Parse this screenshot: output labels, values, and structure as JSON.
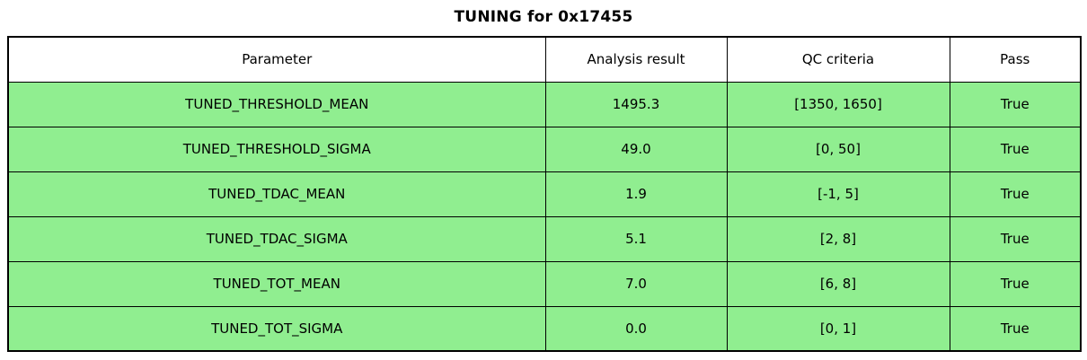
{
  "title": "TUNING for 0x17455",
  "colors": {
    "row_bg": "#90ee90",
    "header_bg": "#ffffff",
    "border": "#000000",
    "text": "#000000"
  },
  "chart_data": {
    "type": "table",
    "title": "TUNING for 0x17455",
    "columns": [
      "Parameter",
      "Analysis result",
      "QC criteria",
      "Pass"
    ],
    "rows": [
      [
        "TUNED_THRESHOLD_MEAN",
        "1495.3",
        "[1350, 1650]",
        "True"
      ],
      [
        "TUNED_THRESHOLD_SIGMA",
        "49.0",
        "[0, 50]",
        "True"
      ],
      [
        "TUNED_TDAC_MEAN",
        "1.9",
        "[-1, 5]",
        "True"
      ],
      [
        "TUNED_TDAC_SIGMA",
        "5.1",
        "[2, 8]",
        "True"
      ],
      [
        "TUNED_TOT_MEAN",
        "7.0",
        "[6, 8]",
        "True"
      ],
      [
        "TUNED_TOT_SIGMA",
        "0.0",
        "[0, 1]",
        "True"
      ]
    ],
    "layout": {
      "header_background": "#ffffff",
      "row_background": "#90ee90",
      "grid": true
    }
  }
}
